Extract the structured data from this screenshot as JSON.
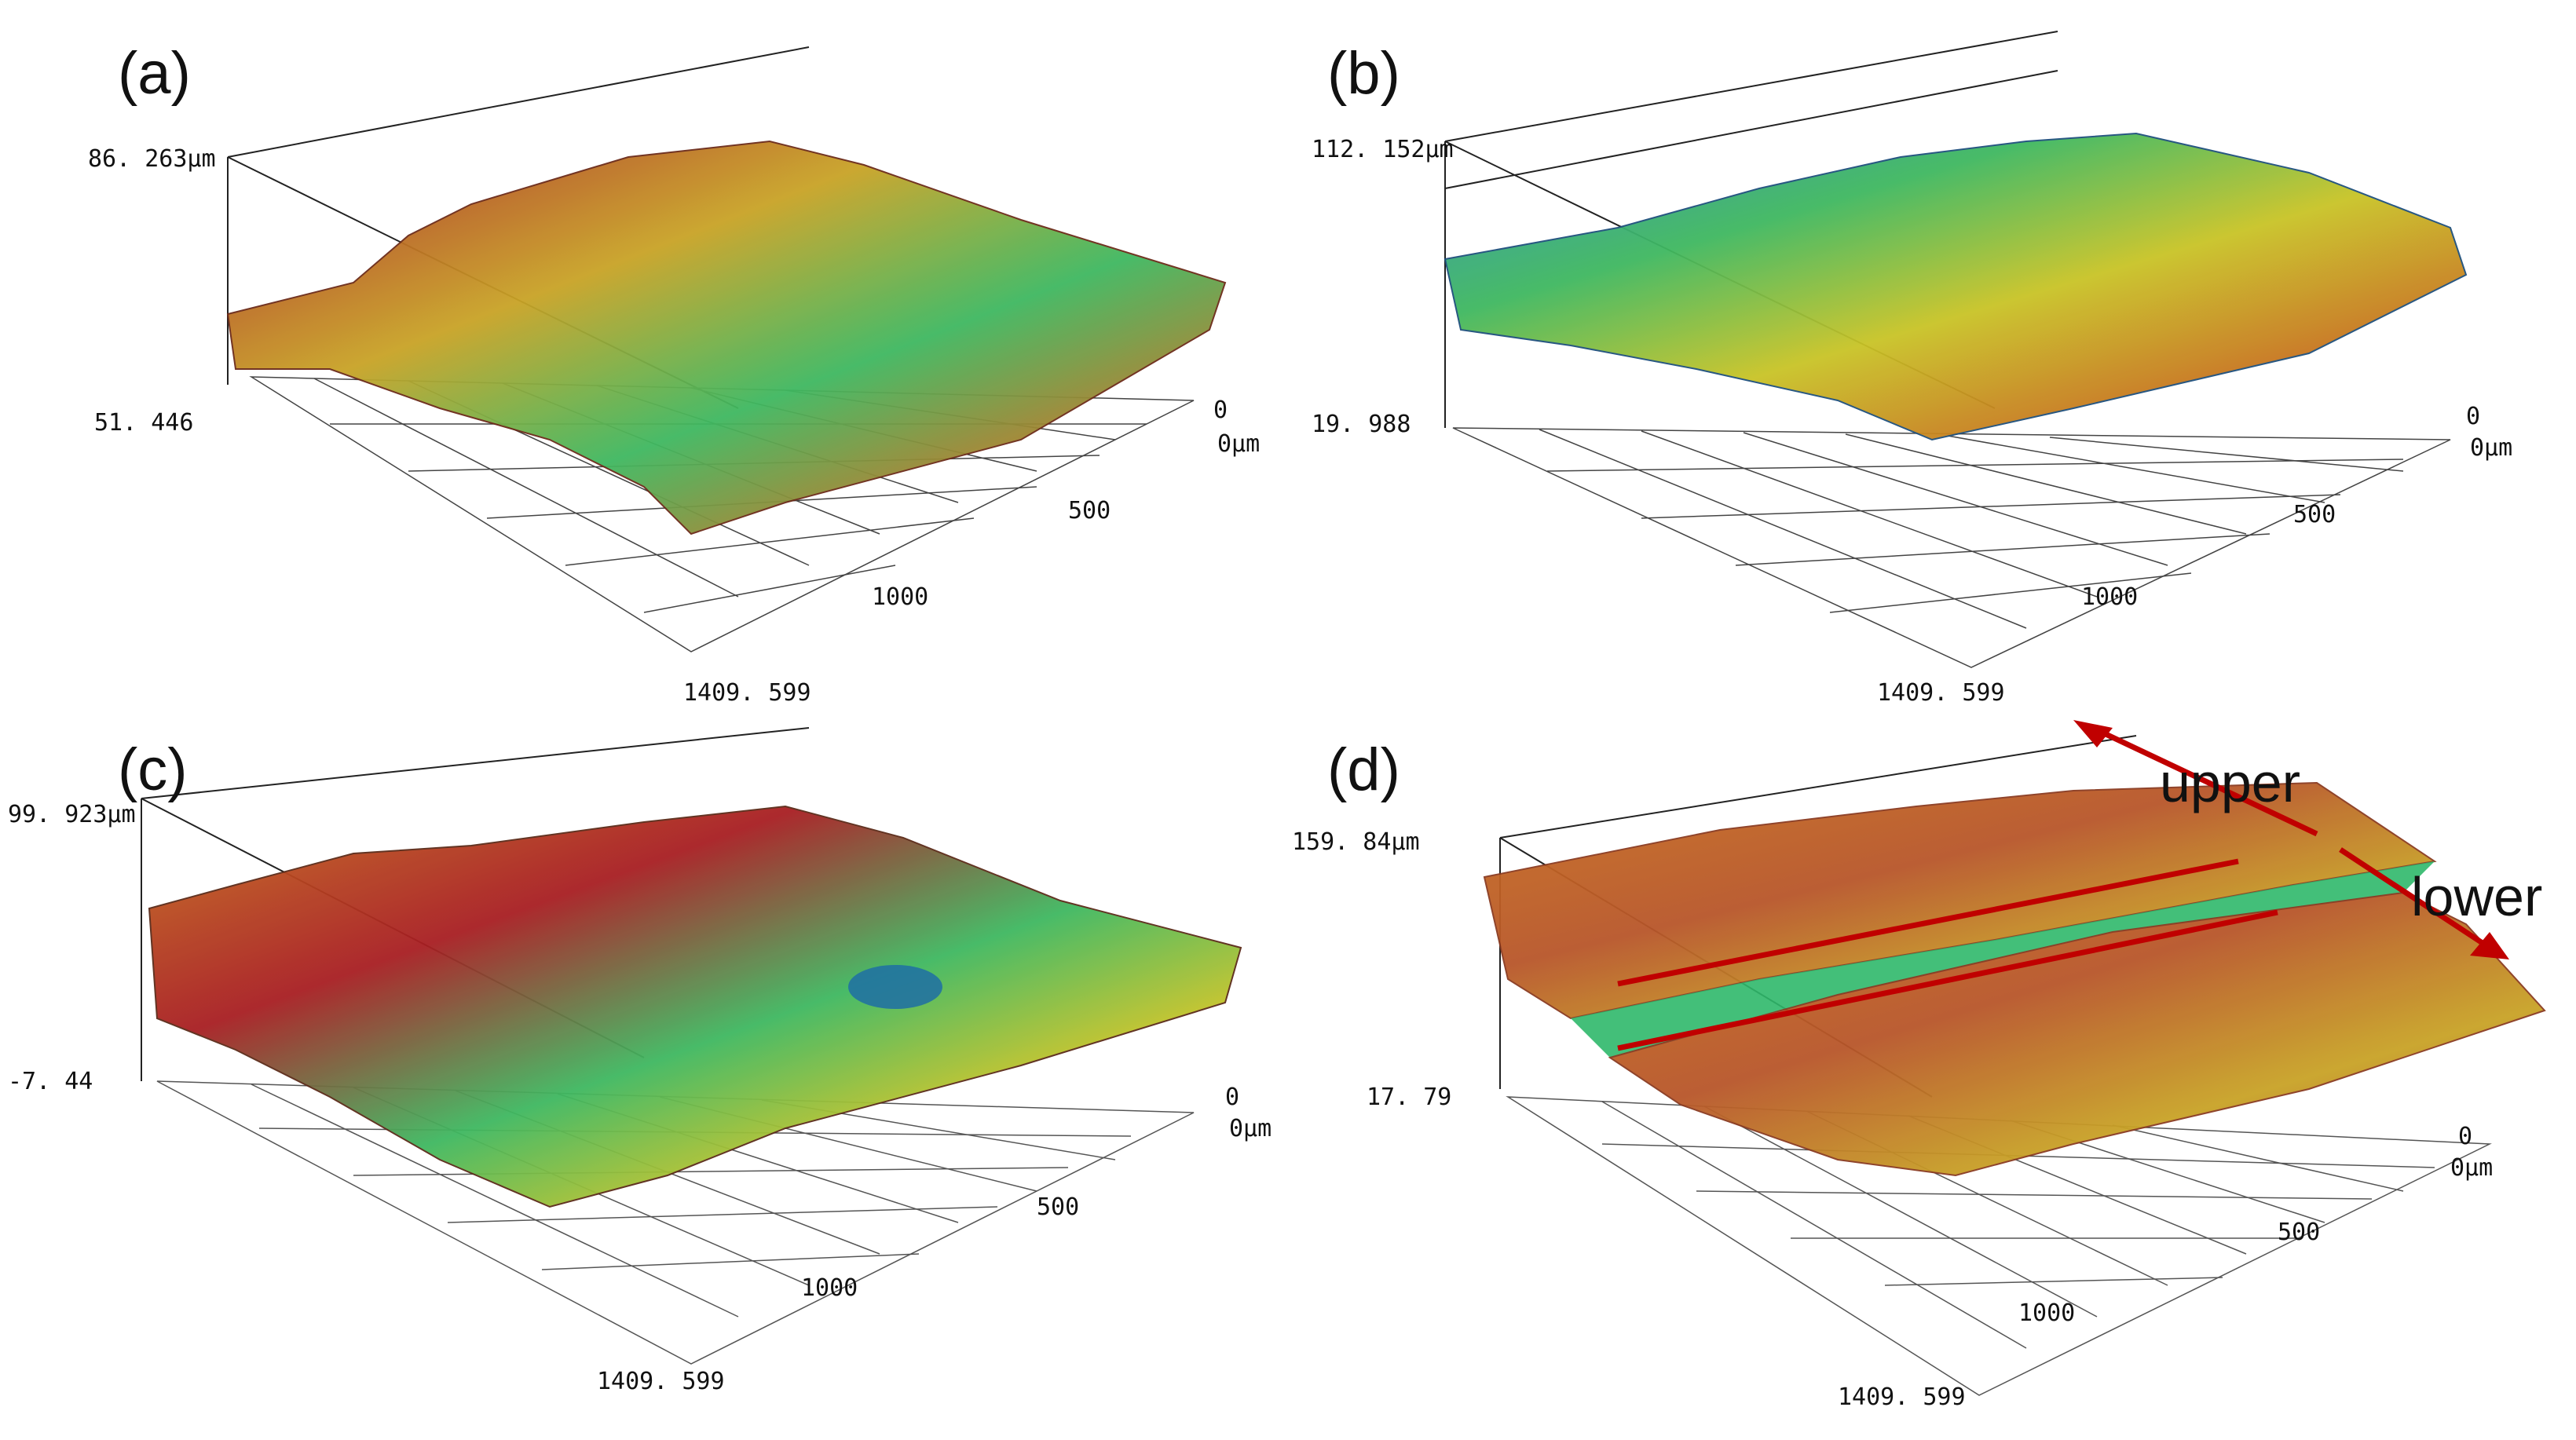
{
  "figure": {
    "panels": [
      {
        "label": "(a)",
        "z_max": "86. 263µm",
        "z_min": "51. 446",
        "x_end": "1409. 599",
        "tick_1000": "1000",
        "tick_500": "500",
        "tick_0": "0",
        "origin": "0µm"
      },
      {
        "label": "(b)",
        "z_max": "112. 152µm",
        "z_min": "19. 988",
        "x_end": "1409. 599",
        "tick_1000": "1000",
        "tick_500": "500",
        "tick_0": "0",
        "origin": "0µm"
      },
      {
        "label": "(c)",
        "z_max": "99. 923µm",
        "z_min": "-7. 44",
        "x_end": "1409. 599",
        "tick_1000": "1000",
        "tick_500": "500",
        "tick_0": "0",
        "origin": "0µm"
      },
      {
        "label": "(d)",
        "z_max": "159. 84µm",
        "z_min": "17. 79",
        "x_end": "1409. 599",
        "tick_1000": "1000",
        "tick_500": "500",
        "tick_0": "0",
        "origin": "0µm"
      }
    ],
    "annotations": {
      "upper": "upper",
      "lower": "lower",
      "arrow_color": "#c00000"
    },
    "colormap": [
      "#1b3a8c",
      "#1f8fb5",
      "#2fb86a",
      "#c9c326",
      "#c8701e",
      "#a81e22"
    ]
  }
}
